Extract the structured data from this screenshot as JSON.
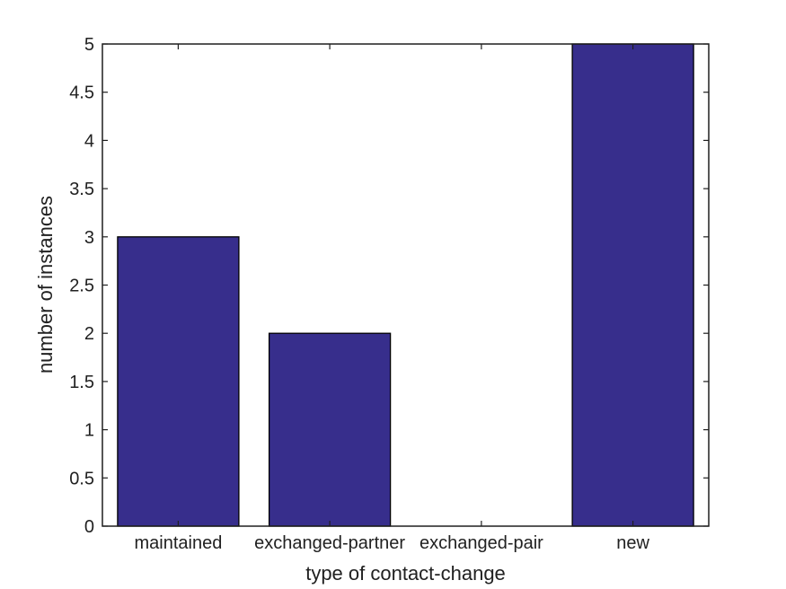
{
  "figure": {
    "background": "#ffffff",
    "axes_color": "#1f1f1f",
    "text_color": "#212121"
  },
  "chart_data": {
    "type": "bar",
    "title": "",
    "xlabel": "type of contact-change",
    "ylabel": "number of instances",
    "categories": [
      "maintained",
      "exchanged-partner",
      "exchanged-pair",
      "new"
    ],
    "values": [
      3,
      2,
      0,
      5
    ],
    "ylim": [
      0,
      5
    ],
    "yticks": [
      0,
      0.5,
      1,
      1.5,
      2,
      2.5,
      3,
      3.5,
      4,
      4.5,
      5
    ],
    "ytick_labels": [
      "0",
      "0.5",
      "1",
      "1.5",
      "2",
      "2.5",
      "3",
      "3.5",
      "4",
      "4.5",
      "5"
    ],
    "bar_color": "#372E8C",
    "bar_edge_color": "#000000",
    "bar_width_fraction": 0.8,
    "grid": false,
    "box": true,
    "legend": null,
    "tick_font_size": 20,
    "label_font_size": 22
  }
}
